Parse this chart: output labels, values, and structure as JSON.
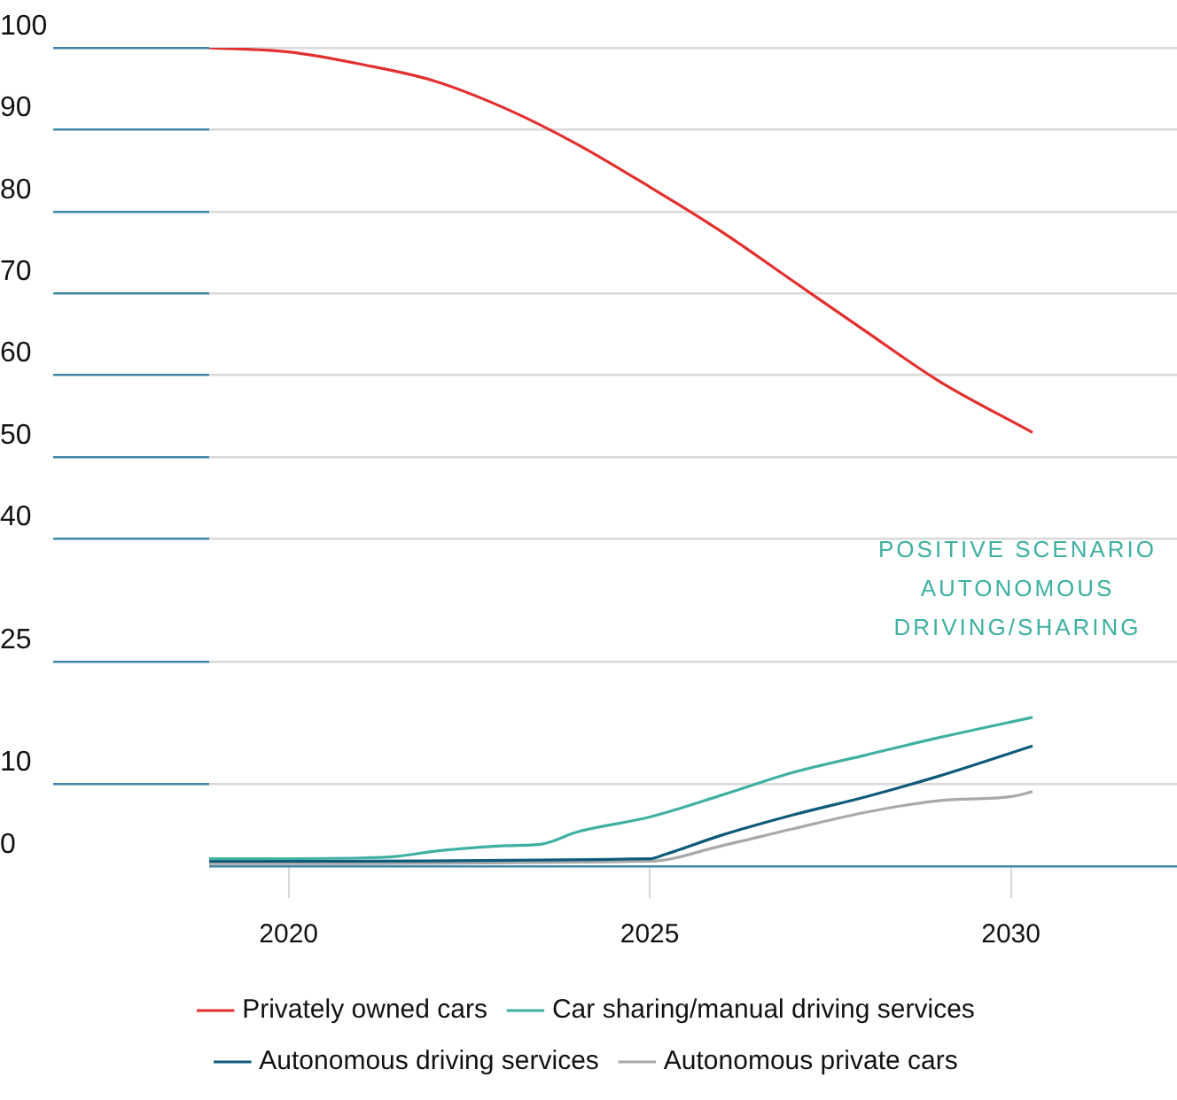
{
  "chart_data": {
    "type": "line",
    "xlim": [
      2018.9,
      2032.3
    ],
    "xticks": [
      2020,
      2025,
      2030
    ],
    "ylim": [
      0,
      100
    ],
    "yticks": [
      0,
      10,
      25,
      40,
      50,
      60,
      70,
      80,
      90,
      100
    ],
    "grid": "y",
    "legend": "bottom",
    "marker": "none",
    "line_style": "solid",
    "annotations": [
      "POSITIVE SCENARIO\nAUTONOMOUS\nDRIVING/SHARING"
    ],
    "series": [
      {
        "name": "Privately owned cars",
        "color": "#e2302f",
        "x": [
          2018.9,
          2020,
          2021,
          2022,
          2023,
          2024,
          2025,
          2026,
          2027,
          2028,
          2029,
          2030.3
        ],
        "values": [
          100,
          99.5,
          98,
          96,
          92.6,
          88.2,
          83,
          77.5,
          71.4,
          65.3,
          59.3,
          53
        ]
      },
      {
        "name": "Car sharing/manual driving services",
        "color": "#3fb0a1",
        "x": [
          2018.9,
          2021,
          2021.5,
          2022,
          2023,
          2023.5,
          2024,
          2025,
          2026,
          2027,
          2028,
          2029,
          2030.3
        ],
        "values": [
          0.9,
          1,
          1.2,
          1.8,
          2.5,
          2.7,
          4.2,
          6,
          8.7,
          11.5,
          13.6,
          15.7,
          18.2
        ]
      },
      {
        "name": "Autonomous driving services",
        "color": "#0e5a7a",
        "x": [
          2018.9,
          2025,
          2025.2,
          2026,
          2027,
          2028,
          2029,
          2030.3
        ],
        "values": [
          0.6,
          0.9,
          1.4,
          3.8,
          6.3,
          8.5,
          11,
          14.7
        ]
      },
      {
        "name": "Autonomous private cars",
        "color": "#a9a9a9",
        "x": [
          2018.9,
          2025,
          2026,
          2027,
          2028,
          2029,
          2030,
          2030.3
        ],
        "values": [
          0.3,
          0.6,
          2.5,
          4.6,
          6.6,
          8,
          8.5,
          9.1
        ]
      }
    ]
  }
}
